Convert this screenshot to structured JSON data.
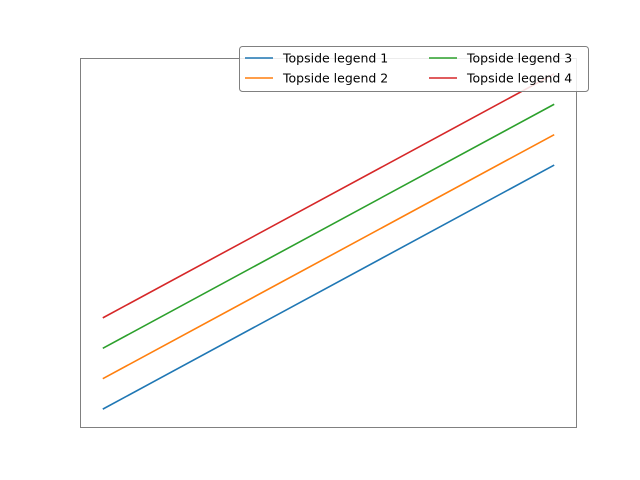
{
  "chart_data": {
    "type": "line",
    "title": "",
    "xlabel": "",
    "ylabel": "",
    "xlim": [
      -0.225,
      4.725
    ],
    "ylim": [
      0.7,
      6.75
    ],
    "grid": false,
    "axes_visible": false,
    "legend_placement": "top-right",
    "legend_columns": 2,
    "x": [
      0,
      4.5
    ],
    "series": [
      {
        "name": "Topside legend 1",
        "color": "#1f77b4",
        "values": [
          1.0,
          5.0
        ]
      },
      {
        "name": "Topside legend 2",
        "color": "#ff7f0e",
        "values": [
          1.5,
          5.5
        ]
      },
      {
        "name": "Topside legend 3",
        "color": "#2ca02c",
        "values": [
          2.0,
          6.0
        ]
      },
      {
        "name": "Topside legend 4",
        "color": "#d62728",
        "values": [
          2.5,
          6.5
        ]
      }
    ]
  }
}
